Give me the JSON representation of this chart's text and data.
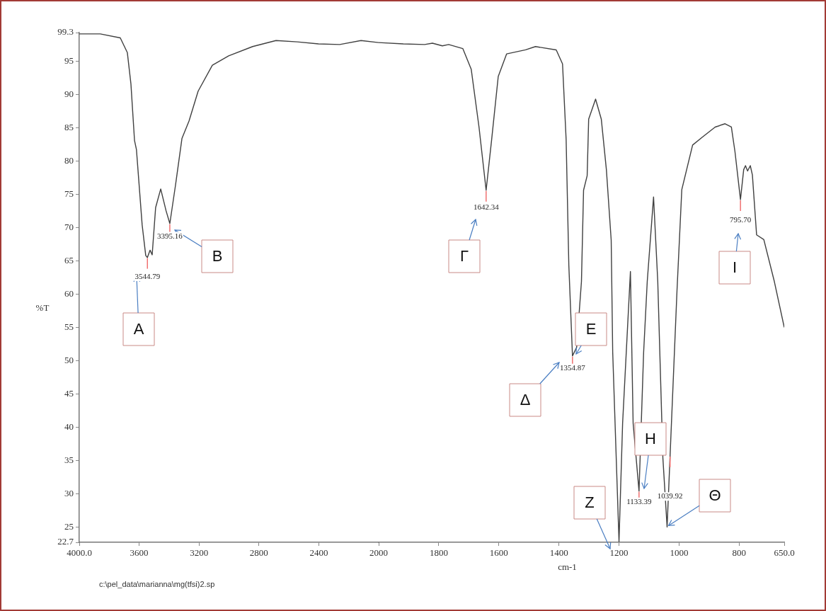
{
  "chart_data": [
    {
      "type": "line",
      "ylabel": "%T",
      "xlim": [
        4000,
        2000
      ],
      "xticks": [
        {
          "value": 4000,
          "label": "4000.0"
        },
        3600,
        3200,
        2800,
        2400,
        2000
      ],
      "ylim": [
        22.7,
        99.3
      ],
      "yticks": [
        22.7,
        25,
        30,
        35,
        40,
        45,
        50,
        55,
        60,
        65,
        70,
        75,
        80,
        85,
        90,
        95,
        99.3
      ],
      "grid": false,
      "legend": false,
      "marker": "none",
      "line_style": "solid",
      "series": [
        {
          "color": "#404040",
          "x": [
            4000,
            3860,
            3726,
            3679,
            3655,
            3631,
            3618,
            3580,
            3556,
            3545,
            3527,
            3513,
            3490,
            3456,
            3420,
            3395,
            3357,
            3314,
            3267,
            3206,
            3111,
            3002,
            2842,
            2686,
            2544,
            2402,
            2260,
            2118,
            2000
          ],
          "values": [
            99.1,
            99.1,
            98.5,
            96.3,
            91.6,
            83.1,
            81.7,
            70.4,
            65.8,
            65.5,
            66.6,
            65.9,
            73.0,
            75.8,
            72.5,
            70.6,
            76.4,
            83.4,
            86.0,
            90.5,
            94.4,
            95.8,
            97.2,
            98.1,
            97.9,
            97.6,
            97.5,
            98.1,
            97.8
          ]
        }
      ],
      "annotations": [
        "A",
        {
          "text": "3544.79",
          "x": 3544.79,
          "y": 62.6
        },
        "B",
        {
          "text": "3395.16",
          "x": 3395.16,
          "y": 68.7
        },
        "c:\\pel_data\\marianna\\mg(tfsi)2.sp"
      ]
    },
    {
      "type": "line",
      "xlabel": "cm-1",
      "xlim": [
        2000,
        650
      ],
      "xticks": [
        1800,
        1600,
        1400,
        1200,
        1000,
        800,
        {
          "value": 650,
          "label": "650.0"
        }
      ],
      "ylim": [
        22.7,
        99.3
      ],
      "tick_labels": "x",
      "grid": false,
      "legend": false,
      "marker": "none",
      "line_style": "solid",
      "series": [
        {
          "color": "#404040",
          "x": [
            2000,
            1918,
            1847,
            1821,
            1788,
            1767,
            1720,
            1692,
            1666,
            1642.34,
            1624,
            1602,
            1574,
            1511,
            1478,
            1409,
            1388,
            1376,
            1367,
            1354.87,
            1341,
            1325,
            1318,
            1306,
            1301,
            1278,
            1259,
            1242,
            1226,
            1221,
            1200,
            1188,
            1162,
            1153,
            1133.39,
            1118,
            1106,
            1085,
            1071,
            1054,
            1039.92,
            1007,
            991,
            955,
            922,
            880,
            847,
            826,
            814,
            795.7,
            785,
            779,
            772,
            763,
            756,
            742,
            718,
            683,
            650
          ],
          "values": [
            97.8,
            97.6,
            97.5,
            97.7,
            97.3,
            97.5,
            96.9,
            93.8,
            85.1,
            75.6,
            83.2,
            92.7,
            96.1,
            96.7,
            97.2,
            96.7,
            94.6,
            83.2,
            64.3,
            50.7,
            52.0,
            61.9,
            75.6,
            77.8,
            86.3,
            89.3,
            86.3,
            78.7,
            68.1,
            51.3,
            22.8,
            40.6,
            63.4,
            40.6,
            30.4,
            51.3,
            61.9,
            74.6,
            61.9,
            35.4,
            25.0,
            60.5,
            75.7,
            82.4,
            83.6,
            85.1,
            85.6,
            85.1,
            81.4,
            74.2,
            78.7,
            79.3,
            78.5,
            79.3,
            77.9,
            68.9,
            68.2,
            61.9,
            55.0
          ]
        }
      ],
      "annotations": [
        "Γ",
        {
          "text": "1642.34",
          "x": 1642.34,
          "y": 73.0
        },
        "Δ",
        {
          "text": "1354.87",
          "x": 1354.87,
          "y": 48.9
        },
        "E",
        "Z",
        "H",
        {
          "text": "1133.39",
          "x": 1133.39,
          "y": 28.8
        },
        {
          "text": "Θ",
          "x": 1039.92,
          "y": 25.0
        },
        {
          "text": "1039.92",
          "x": 1030,
          "y": 29.6
        },
        "I",
        {
          "text": "795.70",
          "x": 795.7,
          "y": 71.1
        }
      ]
    }
  ]
}
